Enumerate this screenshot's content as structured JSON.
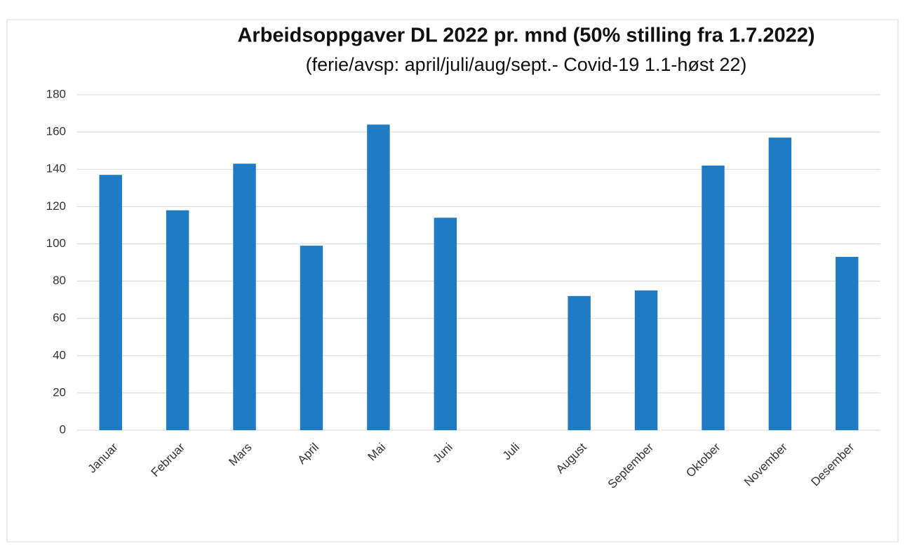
{
  "chart_data": {
    "type": "bar",
    "title": "Arbeidsoppgaver DL 2022 pr. mnd (50% stilling fra 1.7.2022)",
    "subtitle": "(ferie/avsp: april/juli/aug/sept.- Covid-19 1.1-høst 22)",
    "categories": [
      "Januar",
      "Februar",
      "Mars",
      "April",
      "Mai",
      "Juni",
      "Juli",
      "August",
      "September",
      "Oktober",
      "November",
      "Desember"
    ],
    "values": [
      137,
      118,
      143,
      99,
      164,
      114,
      0,
      72,
      75,
      142,
      157,
      93
    ],
    "color": "#1f7cc4",
    "ylim": [
      0,
      180
    ],
    "yticks": [
      0,
      20,
      40,
      60,
      80,
      100,
      120,
      140,
      160,
      180
    ],
    "grid": true
  }
}
